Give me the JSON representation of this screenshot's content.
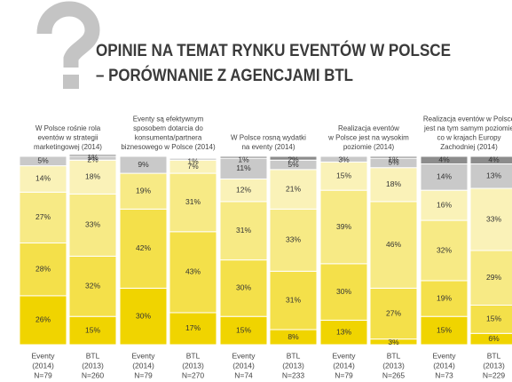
{
  "chart_data": {
    "type": "stacked_bar",
    "title": [
      "OPINIE NA TEMAT RYNKU EVENTÓW W POLSCE",
      "– PORÓWNANIE Z AGENCJAMI BTL"
    ],
    "groups": [
      [
        "W Polsce rośnie rola",
        "eventów w strategii",
        "marketingowej (2014)"
      ],
      [
        "Eventy są efektywnym",
        "sposobem dotarcia do",
        "konsumenta/partnera",
        "biznesowego w Polsce (2014)"
      ],
      [
        "W Polsce rosną wydatki",
        "na eventy (2014)"
      ],
      [
        "Realizacja eventów",
        "w Polsce jest na wysokim",
        "poziomie (2014)"
      ],
      [
        "Realizacja eventów w Polsce",
        "jest na tym samym poziomie",
        "co w krajach Europy",
        "Zachodniej (2014)"
      ]
    ],
    "categories": [
      [
        "Eventy",
        "(2014)",
        "N=79"
      ],
      [
        "BTL",
        "(2013)",
        "N=260"
      ],
      [
        "Eventy",
        "(2014)",
        "N=79"
      ],
      [
        "BTL",
        "(2013)",
        "N=270"
      ],
      [
        "Eventy",
        "(2014)",
        "N=74"
      ],
      [
        "BTL",
        "(2013)",
        "N=233"
      ],
      [
        "Eventy",
        "(2014)",
        "N=79"
      ],
      [
        "BTL",
        "(2013)",
        "N=265"
      ],
      [
        "Eventy",
        "(2014)",
        "N=73"
      ],
      [
        "BTL",
        "(2013)",
        "N=229"
      ]
    ],
    "ylim": [
      0,
      100
    ],
    "series": [
      {
        "color": "#f0d400",
        "values": [
          26,
          15,
          30,
          17,
          15,
          8,
          13,
          3,
          15,
          6
        ],
        "value_labels": [
          "26%",
          "15%",
          "30%",
          "17%",
          "15%",
          "8%",
          "13%",
          "3%",
          "15%",
          "6%"
        ]
      },
      {
        "color": "#f4e04a",
        "values": [
          28,
          32,
          42,
          43,
          30,
          31,
          30,
          27,
          19,
          15
        ],
        "value_labels": [
          "28%",
          "32%",
          "42%",
          "43%",
          "30%",
          "31%",
          "30%",
          "27%",
          "19%",
          "15%"
        ]
      },
      {
        "color": "#f7ea85",
        "values": [
          27,
          33,
          19,
          31,
          31,
          33,
          39,
          46,
          32,
          29
        ],
        "value_labels": [
          "27%",
          "33%",
          "19%",
          "31%",
          "31%",
          "33%",
          "39%",
          "46%",
          "32%",
          "29%"
        ]
      },
      {
        "color": "#faf2b8",
        "values": [
          14,
          18,
          null,
          7,
          12,
          21,
          15,
          18,
          16,
          33
        ],
        "value_labels": [
          "14%",
          "18%",
          null,
          "7%",
          "12%",
          "21%",
          "15%",
          "18%",
          "16%",
          "33%"
        ]
      },
      {
        "color": "#c9c9c9",
        "values": [
          5,
          2,
          9,
          1,
          11,
          5,
          3,
          5,
          14,
          13
        ],
        "value_labels": [
          "5%",
          "2%",
          "9%",
          "1%",
          "11%",
          "5%",
          "3%",
          "5%",
          "14%",
          "13%"
        ]
      },
      {
        "color": "#8c8c8c",
        "values": [
          null,
          1,
          null,
          null,
          1,
          2,
          null,
          1,
          4,
          4
        ],
        "value_labels": [
          null,
          "1%",
          null,
          null,
          "1%",
          "2%",
          null,
          "1%",
          "4%",
          "4%"
        ]
      }
    ]
  }
}
